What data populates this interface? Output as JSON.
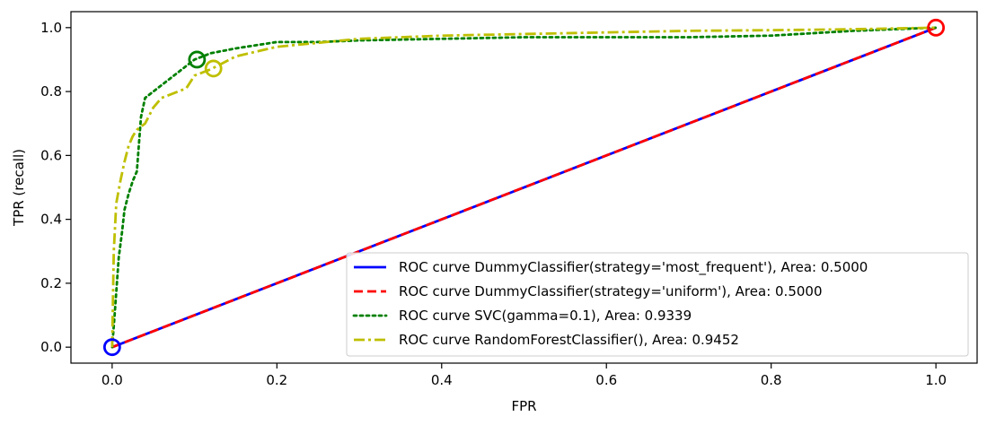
{
  "chart_data": {
    "type": "line",
    "title": "",
    "xlabel": "FPR",
    "ylabel": "TPR (recall)",
    "xlim": [
      -0.05,
      1.05
    ],
    "ylim": [
      -0.05,
      1.05
    ],
    "xticks": [
      0.0,
      0.2,
      0.4,
      0.6,
      0.8,
      1.0
    ],
    "yticks": [
      0.0,
      0.2,
      0.4,
      0.6,
      0.8,
      1.0
    ],
    "xtick_labels": [
      "0.0",
      "0.2",
      "0.4",
      "0.6",
      "0.8",
      "1.0"
    ],
    "ytick_labels": [
      "0.0",
      "0.2",
      "0.4",
      "0.6",
      "0.8",
      "1.0"
    ],
    "grid": false,
    "legend_position": "bottom-right",
    "series": [
      {
        "name": "ROC curve DummyClassifier(strategy='most_frequent'), Area: 0.5000",
        "color": "#0000ff",
        "dash": "solid",
        "x": [
          0.0,
          1.0
        ],
        "y": [
          0.0,
          1.0
        ],
        "marker": {
          "x": 0.0,
          "y": 0.0
        }
      },
      {
        "name": "ROC curve DummyClassifier(strategy='uniform'), Area: 0.5000",
        "color": "#ff0000",
        "dash": "dashed",
        "x": [
          0.0,
          1.0
        ],
        "y": [
          0.0,
          1.0
        ],
        "marker": {
          "x": 1.0,
          "y": 1.0
        }
      },
      {
        "name": "ROC curve SVC(gamma=0.1), Area: 0.9339",
        "color": "#008000",
        "dash": "dotted",
        "x": [
          0.0,
          0.003,
          0.008,
          0.012,
          0.015,
          0.02,
          0.025,
          0.03,
          0.035,
          0.04,
          0.05,
          0.06,
          0.07,
          0.08,
          0.09,
          0.1,
          0.12,
          0.15,
          0.2,
          0.25,
          0.3,
          0.4,
          0.5,
          0.6,
          0.7,
          0.8,
          0.9,
          1.0
        ],
        "y": [
          0.0,
          0.1,
          0.28,
          0.36,
          0.43,
          0.48,
          0.52,
          0.55,
          0.72,
          0.78,
          0.8,
          0.82,
          0.84,
          0.86,
          0.88,
          0.9,
          0.92,
          0.935,
          0.955,
          0.955,
          0.96,
          0.965,
          0.97,
          0.97,
          0.97,
          0.975,
          0.99,
          1.0
        ],
        "marker": {
          "x": 0.103,
          "y": 0.9
        }
      },
      {
        "name": "ROC curve RandomForestClassifier(), Area: 0.9452",
        "color": "#bfbf00",
        "dash": "dashdot",
        "x": [
          0.0,
          0.002,
          0.005,
          0.01,
          0.015,
          0.02,
          0.025,
          0.03,
          0.035,
          0.04,
          0.05,
          0.06,
          0.08,
          0.09,
          0.1,
          0.12,
          0.15,
          0.2,
          0.3,
          0.4,
          0.5,
          0.6,
          0.7,
          0.8,
          0.9,
          1.0
        ],
        "y": [
          0.0,
          0.3,
          0.45,
          0.52,
          0.58,
          0.63,
          0.66,
          0.68,
          0.69,
          0.7,
          0.75,
          0.78,
          0.8,
          0.81,
          0.85,
          0.87,
          0.91,
          0.94,
          0.965,
          0.975,
          0.98,
          0.985,
          0.99,
          0.992,
          0.995,
          1.0
        ],
        "marker": {
          "x": 0.123,
          "y": 0.872
        }
      }
    ]
  }
}
